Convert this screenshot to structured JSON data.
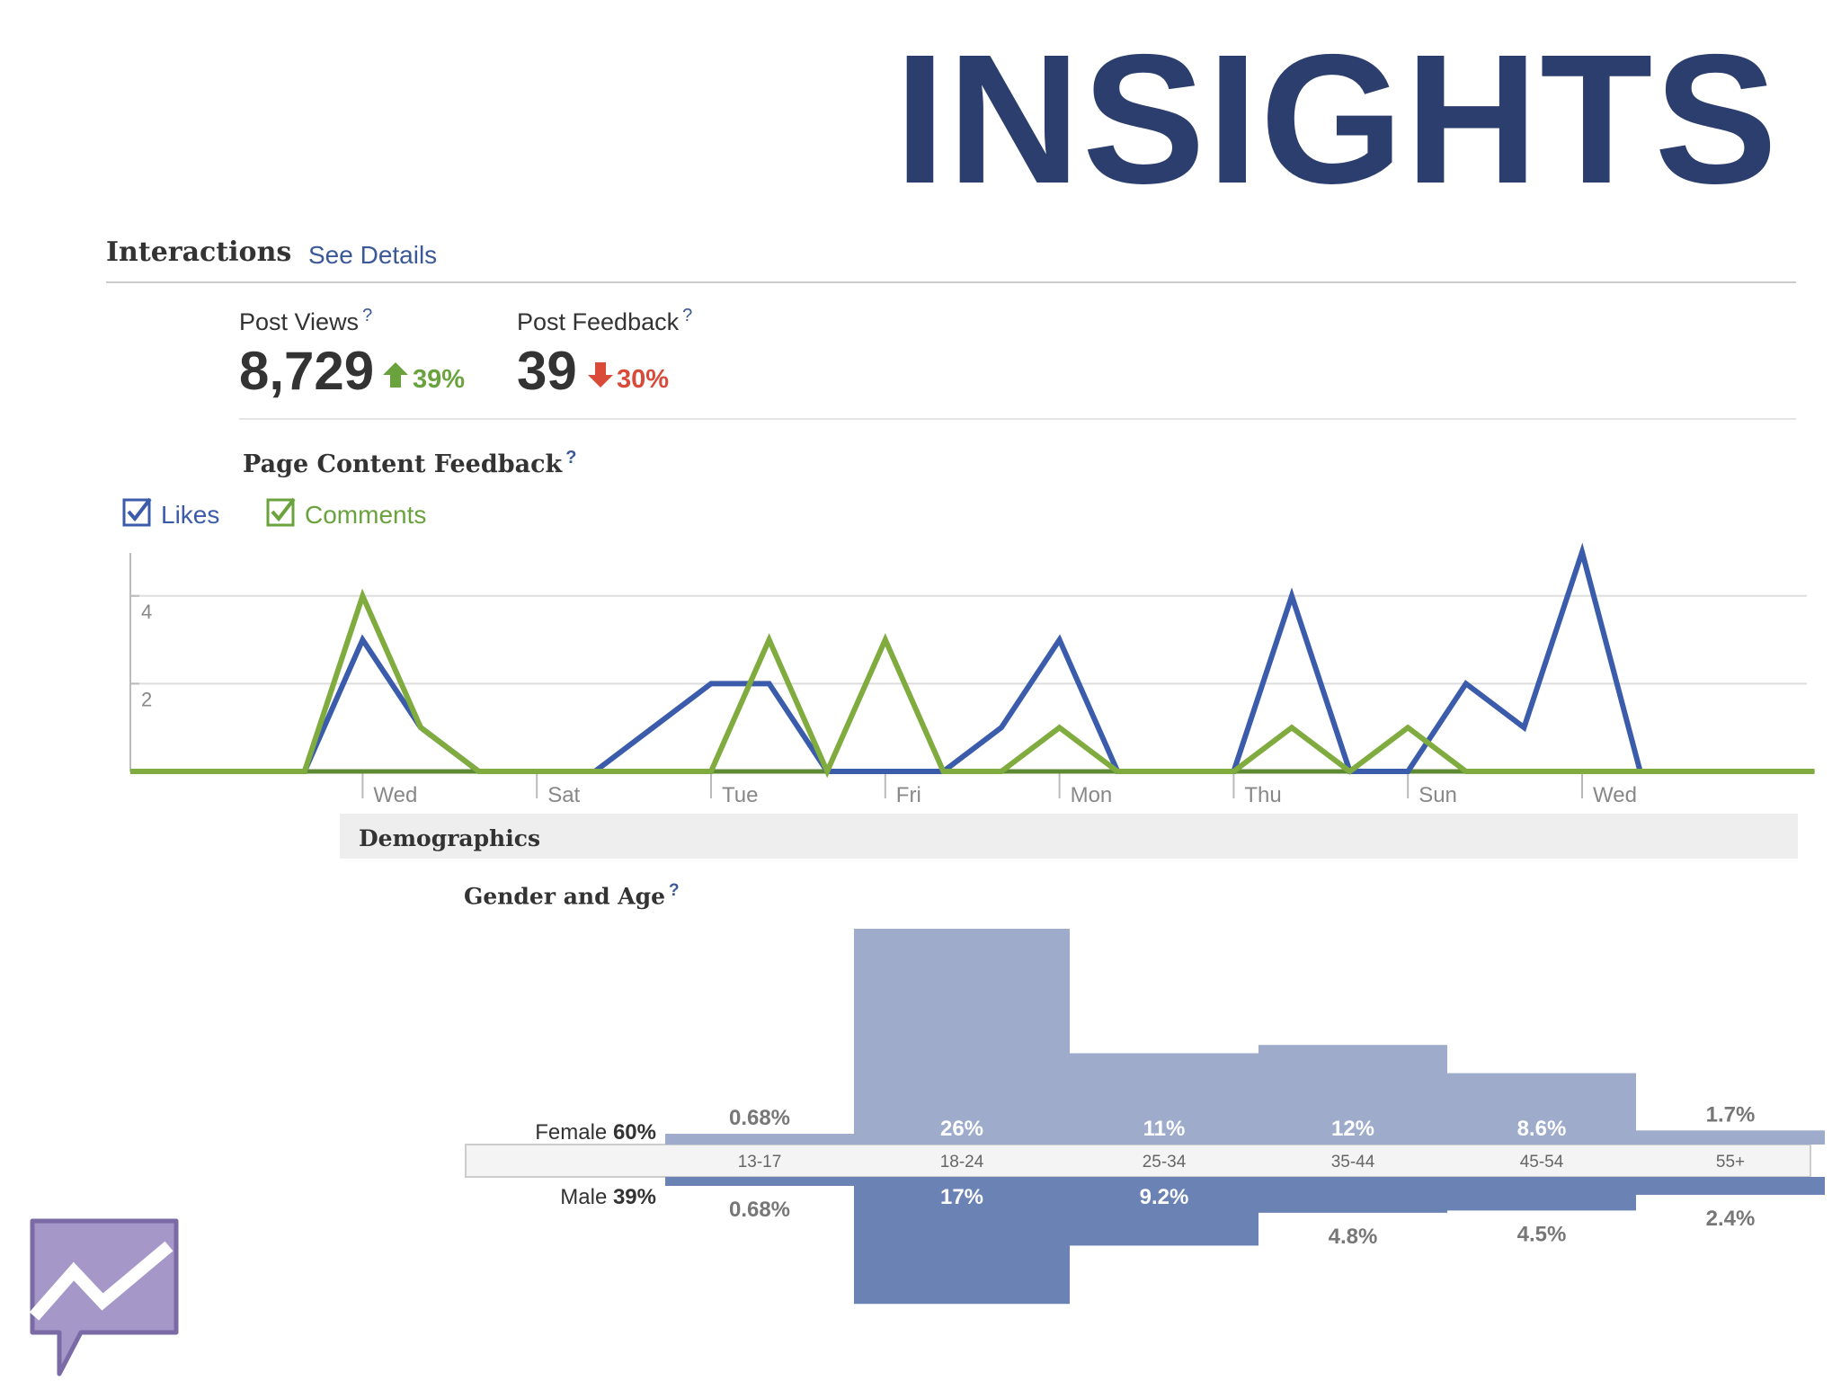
{
  "header": {
    "title": "INSIGHTS"
  },
  "interactions": {
    "title": "Interactions",
    "see_details": "See Details"
  },
  "metrics": [
    {
      "label": "Post Views",
      "help": "?",
      "value": "8,729",
      "change": "39%",
      "direction": "up",
      "color": "#6aa33e"
    },
    {
      "label": "Post Feedback",
      "help": "?",
      "value": "39",
      "change": "30%",
      "direction": "down",
      "color": "#d94a38"
    }
  ],
  "page_content_feedback": {
    "title": "Page Content Feedback",
    "help": "?"
  },
  "legend": {
    "likes": "Likes",
    "comments": "Comments"
  },
  "demographics": {
    "title": "Demographics"
  },
  "gender_age": {
    "title": "Gender and Age",
    "help": "?"
  },
  "chart_data": [
    {
      "type": "line",
      "y_ticks": [
        2,
        4
      ],
      "ylim": [
        0,
        5.3
      ],
      "grid": true,
      "x_tick_labels": [
        "Wed",
        "Sat",
        "Tue",
        "Fri",
        "Mon",
        "Thu",
        "Sun",
        "Wed"
      ],
      "x_tick_positions": [
        4,
        7,
        10,
        13,
        16,
        19,
        22,
        25
      ],
      "x": [
        0,
        1,
        2,
        3,
        4,
        5,
        6,
        7,
        8,
        9,
        10,
        11,
        12,
        13,
        14,
        15,
        16,
        17,
        18,
        19,
        20,
        21,
        22,
        23,
        24,
        25,
        26,
        27,
        28,
        29
      ],
      "series": [
        {
          "name": "Likes",
          "color": "#3b5bab",
          "values": [
            0,
            0,
            0,
            0,
            3,
            1,
            0,
            0,
            0,
            1,
            2,
            2,
            0,
            0,
            0,
            1,
            3,
            0,
            0,
            0,
            4,
            0,
            0,
            2,
            1,
            5,
            0,
            0,
            0,
            0
          ]
        },
        {
          "name": "Comments",
          "color": "#7fab3f",
          "values": [
            0,
            0,
            0,
            0,
            4,
            1,
            0,
            0,
            0,
            0,
            0,
            3,
            0,
            3,
            0,
            0,
            1,
            0,
            0,
            0,
            1,
            0,
            1,
            0,
            0,
            0,
            0,
            0,
            0,
            0
          ]
        }
      ]
    },
    {
      "type": "bar",
      "categories": [
        "13-17",
        "18-24",
        "25-34",
        "35-44",
        "45-54",
        "55+"
      ],
      "series": [
        {
          "name": "Female",
          "total": "60%",
          "color": "#9eabcb",
          "values": [
            0.68,
            26,
            11,
            12,
            8.6,
            1.7
          ],
          "labels": [
            "0.68%",
            "26%",
            "11%",
            "12%",
            "8.6%",
            "1.7%"
          ]
        },
        {
          "name": "Male",
          "total": "39%",
          "color": "#6b83b4",
          "values": [
            0.68,
            17,
            9.2,
            4.8,
            4.5,
            2.4
          ],
          "labels": [
            "0.68%",
            "17%",
            "9.2%",
            "4.8%",
            "4.5%",
            "2.4%"
          ]
        }
      ]
    }
  ]
}
